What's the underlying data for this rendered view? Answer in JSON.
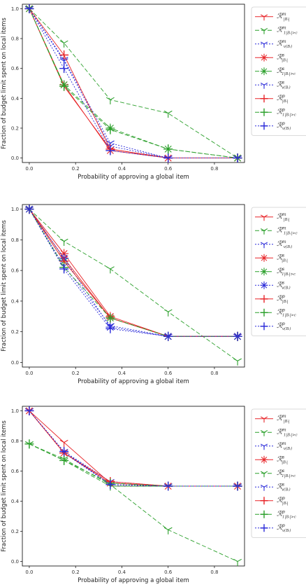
{
  "chart_data": [
    {
      "type": "line",
      "xlabel": "Probability of approving a global item",
      "ylabel": "Fraction of budget limit spent on local items",
      "xlim": [
        -0.03,
        0.93
      ],
      "ylim": [
        -0.03,
        1.03
      ],
      "xticks": [
        0.0,
        0.2,
        0.4,
        0.6,
        0.8
      ],
      "xtick_labels": [
        "0.0",
        "0.2",
        "0.4",
        "0.6",
        "0.8"
      ],
      "yticks": [
        0.0,
        0.2,
        0.4,
        0.6,
        0.8,
        1.0
      ],
      "ytick_labels": [
        "0.0",
        "0.2",
        "0.4",
        "0.6",
        "0.8",
        "1.0"
      ],
      "legend_position": "right",
      "x": [
        0.0,
        0.15,
        0.35,
        0.6,
        0.9
      ],
      "series": [
        {
          "name": "R^m_{|B_i|}",
          "color": "#e8262a",
          "dash": "solid",
          "marker": "tri",
          "values": [
            1.0,
            0.48,
            0.06,
            0.0,
            0.0
          ]
        },
        {
          "name": "R^m_{1_{|B_i|>c}}",
          "color": "#2ca02c",
          "dash": "6,3",
          "marker": "tri",
          "values": [
            1.0,
            0.77,
            0.39,
            0.3,
            0.0
          ]
        },
        {
          "name": "R^m_{v(B_i)}",
          "color": "#2b2bd9",
          "dash": "2,2",
          "marker": "tri",
          "values": [
            1.0,
            0.65,
            0.08,
            0.0,
            0.0
          ]
        },
        {
          "name": "R^s_{|B_i|}",
          "color": "#e8262a",
          "dash": "solid",
          "marker": "star",
          "values": [
            1.0,
            0.49,
            0.05,
            0.0,
            0.0
          ]
        },
        {
          "name": "R^s_{1_{|B_i|>c}}",
          "color": "#2ca02c",
          "dash": "6,3",
          "marker": "star",
          "values": [
            1.0,
            0.49,
            0.2,
            0.06,
            0.0
          ]
        },
        {
          "name": "R^s_{v(B_i)}",
          "color": "#2b2bd9",
          "dash": "2,2",
          "marker": "tri",
          "values": [
            1.0,
            0.66,
            0.1,
            0.0,
            0.0
          ]
        },
        {
          "name": "R^p_{|B_i|}",
          "color": "#e8262a",
          "dash": "solid",
          "marker": "plus",
          "values": [
            1.0,
            0.69,
            0.06,
            0.0,
            0.0
          ]
        },
        {
          "name": "R^p_{1_{|B_i|>c}}",
          "color": "#2ca02c",
          "dash": "6,3",
          "marker": "plus",
          "values": [
            1.0,
            0.48,
            0.19,
            0.06,
            0.0
          ]
        },
        {
          "name": "R^p_{v(B_i)}",
          "color": "#2b2bd9",
          "dash": "2,2",
          "marker": "plus",
          "values": [
            1.0,
            0.6,
            0.05,
            0.0,
            0.0
          ]
        }
      ]
    },
    {
      "type": "line",
      "xlabel": "Probability of approving a global item",
      "ylabel": "Fraction of budget limit spent on local items",
      "xlim": [
        -0.03,
        0.93
      ],
      "ylim": [
        -0.03,
        1.03
      ],
      "xticks": [
        0.0,
        0.2,
        0.4,
        0.6,
        0.8
      ],
      "xtick_labels": [
        "0.0",
        "0.2",
        "0.4",
        "0.6",
        "0.8"
      ],
      "yticks": [
        0.0,
        0.2,
        0.4,
        0.6,
        0.8,
        1.0
      ],
      "ytick_labels": [
        "0.0",
        "0.2",
        "0.4",
        "0.6",
        "0.8",
        "1.0"
      ],
      "legend_position": "right",
      "x": [
        0.0,
        0.15,
        0.35,
        0.6,
        0.9
      ],
      "series": [
        {
          "name": "R^m_{|B_i|}",
          "color": "#e8262a",
          "dash": "solid",
          "marker": "tri",
          "values": [
            1.0,
            0.68,
            0.29,
            0.17,
            0.17
          ]
        },
        {
          "name": "R^m_{1_{|B_i|>c}}",
          "color": "#2ca02c",
          "dash": "6,3",
          "marker": "tri",
          "values": [
            1.0,
            0.79,
            0.61,
            0.33,
            0.01
          ]
        },
        {
          "name": "R^m_{v(B_i)}",
          "color": "#2b2bd9",
          "dash": "2,2",
          "marker": "tri",
          "values": [
            1.0,
            0.63,
            0.24,
            0.17,
            0.17
          ]
        },
        {
          "name": "R^s_{|B_i|}",
          "color": "#e8262a",
          "dash": "solid",
          "marker": "star",
          "values": [
            1.0,
            0.71,
            0.3,
            0.17,
            0.17
          ]
        },
        {
          "name": "R^s_{1_{|B_i|>c}}",
          "color": "#2ca02c",
          "dash": "6,3",
          "marker": "star",
          "values": [
            1.0,
            0.66,
            0.29,
            0.17,
            0.17
          ]
        },
        {
          "name": "R^s_{v(B_i)}",
          "color": "#2b2bd9",
          "dash": "2,2",
          "marker": "star",
          "values": [
            1.0,
            0.68,
            0.23,
            0.17,
            0.17
          ]
        },
        {
          "name": "R^p_{|B_i|}",
          "color": "#e8262a",
          "dash": "solid",
          "marker": "plus",
          "values": [
            1.0,
            0.66,
            0.29,
            0.17,
            0.17
          ]
        },
        {
          "name": "R^p_{1_{|B_i|>c}}",
          "color": "#2ca02c",
          "dash": "6,3",
          "marker": "plus",
          "values": [
            1.0,
            0.62,
            0.29,
            0.17,
            0.17
          ]
        },
        {
          "name": "R^p_{v(B_i)}",
          "color": "#2b2bd9",
          "dash": "2,2",
          "marker": "plus",
          "values": [
            1.0,
            0.61,
            0.22,
            0.17,
            0.17
          ]
        }
      ],
      "reference_line": {
        "color": "#000000",
        "x": [
          0.6,
          0.9
        ],
        "values": [
          0.17,
          0.17
        ]
      }
    },
    {
      "type": "line",
      "xlabel": "Probability of approving a global item",
      "ylabel": "Fraction of budget limit spent on local items",
      "xlim": [
        -0.03,
        0.93
      ],
      "ylim": [
        -0.03,
        1.03
      ],
      "xticks": [
        0.0,
        0.2,
        0.4,
        0.6,
        0.8
      ],
      "xtick_labels": [
        "0.0",
        "0.2",
        "0.4",
        "0.6",
        "0.8"
      ],
      "yticks": [
        0.0,
        0.2,
        0.4,
        0.6,
        0.8,
        1.0
      ],
      "ytick_labels": [
        "0.0",
        "0.2",
        "0.4",
        "0.6",
        "0.8",
        "1.0"
      ],
      "legend_position": "right",
      "x": [
        0.0,
        0.15,
        0.35,
        0.6,
        0.9
      ],
      "series": [
        {
          "name": "R^m_{|B_i|}",
          "color": "#e8262a",
          "dash": "solid",
          "marker": "tri",
          "values": [
            1.0,
            0.79,
            0.52,
            0.5,
            0.5
          ]
        },
        {
          "name": "R^m_{1_{|B_i|>c}}",
          "color": "#2ca02c",
          "dash": "6,3",
          "marker": "tri",
          "values": [
            0.78,
            0.68,
            0.51,
            0.21,
            0.0
          ]
        },
        {
          "name": "R^m_{v(B_i)}",
          "color": "#2b2bd9",
          "dash": "2,2",
          "marker": "tri",
          "values": [
            1.0,
            0.73,
            0.53,
            0.5,
            0.5
          ]
        },
        {
          "name": "R^s_{|B_i|}",
          "color": "#e8262a",
          "dash": "solid",
          "marker": "star",
          "values": [
            1.0,
            0.72,
            0.52,
            0.5,
            0.5
          ]
        },
        {
          "name": "R^s_{1_{|B_i|>c}}",
          "color": "#2ca02c",
          "dash": "6,3",
          "marker": "tri",
          "values": [
            0.78,
            0.67,
            0.5,
            0.5,
            0.5
          ]
        },
        {
          "name": "R^s_{v(B_i)}",
          "color": "#2b2bd9",
          "dash": "2,2",
          "marker": "tri",
          "values": [
            1.0,
            0.72,
            0.51,
            0.5,
            0.5
          ]
        },
        {
          "name": "R^p_{|B_i|}",
          "color": "#e8262a",
          "dash": "solid",
          "marker": "plus",
          "values": [
            1.0,
            0.72,
            0.53,
            0.5,
            0.5
          ]
        },
        {
          "name": "R^p_{1_{|B_i|>c}}",
          "color": "#2ca02c",
          "dash": "6,3",
          "marker": "plus",
          "values": [
            0.78,
            0.67,
            0.52,
            0.5,
            0.5
          ]
        },
        {
          "name": "R^p_{v(B_i)}",
          "color": "#2b2bd9",
          "dash": "2,2",
          "marker": "plus",
          "values": [
            1.0,
            0.73,
            0.51,
            0.5,
            0.5
          ]
        }
      ],
      "reference_line": {
        "color": "#000000",
        "x": [
          0.35,
          0.9
        ],
        "values": [
          0.5,
          0.5
        ]
      }
    }
  ]
}
